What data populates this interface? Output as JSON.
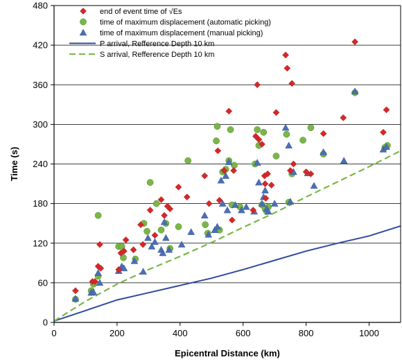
{
  "chart_data": {
    "type": "scatter",
    "xlabel": "Epicentral Distance (km)",
    "ylabel": "Time (s)",
    "xlim": [
      0,
      1100
    ],
    "ylim": [
      0,
      480
    ],
    "x_ticks": [
      0,
      200,
      400,
      600,
      800,
      1000
    ],
    "y_ticks": [
      0,
      60,
      120,
      180,
      240,
      300,
      360,
      420,
      480
    ],
    "grid": "horizontal",
    "legend_position": "top-left",
    "series": [
      {
        "name": "end of event time of √Es",
        "kind": "scatter",
        "marker": "diamond",
        "color": "#d62728",
        "points": [
          [
            68,
            48
          ],
          [
            122,
            62
          ],
          [
            130,
            62
          ],
          [
            140,
            85
          ],
          [
            145,
            118
          ],
          [
            148,
            82
          ],
          [
            205,
            80
          ],
          [
            212,
            105
          ],
          [
            222,
            108
          ],
          [
            228,
            125
          ],
          [
            252,
            110
          ],
          [
            275,
            148
          ],
          [
            282,
            118
          ],
          [
            305,
            170
          ],
          [
            320,
            132
          ],
          [
            340,
            186
          ],
          [
            350,
            162
          ],
          [
            360,
            176
          ],
          [
            368,
            172
          ],
          [
            395,
            205
          ],
          [
            422,
            190
          ],
          [
            478,
            222
          ],
          [
            492,
            180
          ],
          [
            520,
            260
          ],
          [
            525,
            185
          ],
          [
            540,
            230
          ],
          [
            555,
            320
          ],
          [
            565,
            155
          ],
          [
            570,
            230
          ],
          [
            632,
            170
          ],
          [
            640,
            282
          ],
          [
            645,
            360
          ],
          [
            650,
            277
          ],
          [
            660,
            270
          ],
          [
            668,
            222
          ],
          [
            670,
            210
          ],
          [
            672,
            188
          ],
          [
            678,
            225
          ],
          [
            690,
            208
          ],
          [
            705,
            318
          ],
          [
            735,
            405
          ],
          [
            740,
            385
          ],
          [
            750,
            230
          ],
          [
            755,
            362
          ],
          [
            760,
            240
          ],
          [
            800,
            228
          ],
          [
            815,
            225
          ],
          [
            855,
            286
          ],
          [
            918,
            310
          ],
          [
            955,
            425
          ],
          [
            1045,
            288
          ],
          [
            1055,
            322
          ]
        ]
      },
      {
        "name": "time of maximum displacement (automatic picking)",
        "kind": "scatter",
        "marker": "circle",
        "color": "#7ab648",
        "points": [
          [
            68,
            35
          ],
          [
            118,
            48
          ],
          [
            125,
            58
          ],
          [
            140,
            162
          ],
          [
            140,
            70
          ],
          [
            205,
            115
          ],
          [
            215,
            115
          ],
          [
            220,
            98
          ],
          [
            258,
            96
          ],
          [
            285,
            150
          ],
          [
            295,
            138
          ],
          [
            305,
            212
          ],
          [
            325,
            180
          ],
          [
            340,
            140
          ],
          [
            355,
            150
          ],
          [
            368,
            112
          ],
          [
            395,
            145
          ],
          [
            425,
            245
          ],
          [
            480,
            148
          ],
          [
            488,
            135
          ],
          [
            515,
            275
          ],
          [
            518,
            297
          ],
          [
            525,
            140
          ],
          [
            535,
            228
          ],
          [
            545,
            232
          ],
          [
            555,
            245
          ],
          [
            560,
            292
          ],
          [
            565,
            178
          ],
          [
            572,
            238
          ],
          [
            590,
            175
          ],
          [
            638,
            240
          ],
          [
            645,
            292
          ],
          [
            650,
            268
          ],
          [
            660,
            178
          ],
          [
            665,
            288
          ],
          [
            670,
            172
          ],
          [
            675,
            168
          ],
          [
            680,
            175
          ],
          [
            705,
            252
          ],
          [
            738,
            285
          ],
          [
            745,
            182
          ],
          [
            755,
            225
          ],
          [
            790,
            276
          ],
          [
            815,
            295
          ],
          [
            855,
            255
          ],
          [
            955,
            348
          ],
          [
            1050,
            265
          ],
          [
            1058,
            268
          ]
        ]
      },
      {
        "name": "time of maximum displacement (manual picking)",
        "kind": "scatter",
        "marker": "triangle",
        "color": "#4a6fb5",
        "points": [
          [
            68,
            36
          ],
          [
            118,
            45
          ],
          [
            125,
            46
          ],
          [
            140,
            75
          ],
          [
            145,
            60
          ],
          [
            205,
            78
          ],
          [
            215,
            85
          ],
          [
            222,
            82
          ],
          [
            255,
            93
          ],
          [
            283,
            77
          ],
          [
            298,
            128
          ],
          [
            310,
            115
          ],
          [
            320,
            122
          ],
          [
            340,
            110
          ],
          [
            345,
            105
          ],
          [
            350,
            152
          ],
          [
            355,
            128
          ],
          [
            365,
            110
          ],
          [
            405,
            118
          ],
          [
            435,
            137
          ],
          [
            478,
            162
          ],
          [
            490,
            133
          ],
          [
            510,
            140
          ],
          [
            518,
            145
          ],
          [
            530,
            215
          ],
          [
            535,
            180
          ],
          [
            545,
            222
          ],
          [
            550,
            170
          ],
          [
            555,
            243
          ],
          [
            575,
            178
          ],
          [
            595,
            170
          ],
          [
            610,
            175
          ],
          [
            635,
            168
          ],
          [
            645,
            242
          ],
          [
            650,
            212
          ],
          [
            660,
            180
          ],
          [
            665,
            190
          ],
          [
            670,
            200
          ],
          [
            675,
            172
          ],
          [
            680,
            168
          ],
          [
            700,
            180
          ],
          [
            735,
            295
          ],
          [
            745,
            268
          ],
          [
            750,
            183
          ],
          [
            760,
            228
          ],
          [
            805,
            226
          ],
          [
            825,
            207
          ],
          [
            855,
            258
          ],
          [
            920,
            245
          ],
          [
            955,
            350
          ],
          [
            1045,
            262
          ],
          [
            1055,
            266
          ]
        ]
      },
      {
        "name": "P arrival, Refference Depth 10 km",
        "kind": "line",
        "style": "solid",
        "color": "#2e4a9e",
        "points": [
          [
            0,
            2
          ],
          [
            100,
            18
          ],
          [
            200,
            34
          ],
          [
            300,
            45
          ],
          [
            400,
            56
          ],
          [
            500,
            67
          ],
          [
            600,
            80
          ],
          [
            700,
            94
          ],
          [
            800,
            108
          ],
          [
            900,
            120
          ],
          [
            1000,
            131
          ],
          [
            1100,
            146
          ]
        ]
      },
      {
        "name": "S arrival, Refference Depth 10 km",
        "kind": "line",
        "style": "dashed",
        "color": "#7ab648",
        "points": [
          [
            0,
            2
          ],
          [
            100,
            32
          ],
          [
            200,
            58
          ],
          [
            300,
            80
          ],
          [
            400,
            100
          ],
          [
            500,
            121
          ],
          [
            600,
            144
          ],
          [
            700,
            166
          ],
          [
            800,
            190
          ],
          [
            900,
            213
          ],
          [
            1000,
            236
          ],
          [
            1100,
            260
          ]
        ]
      }
    ]
  }
}
